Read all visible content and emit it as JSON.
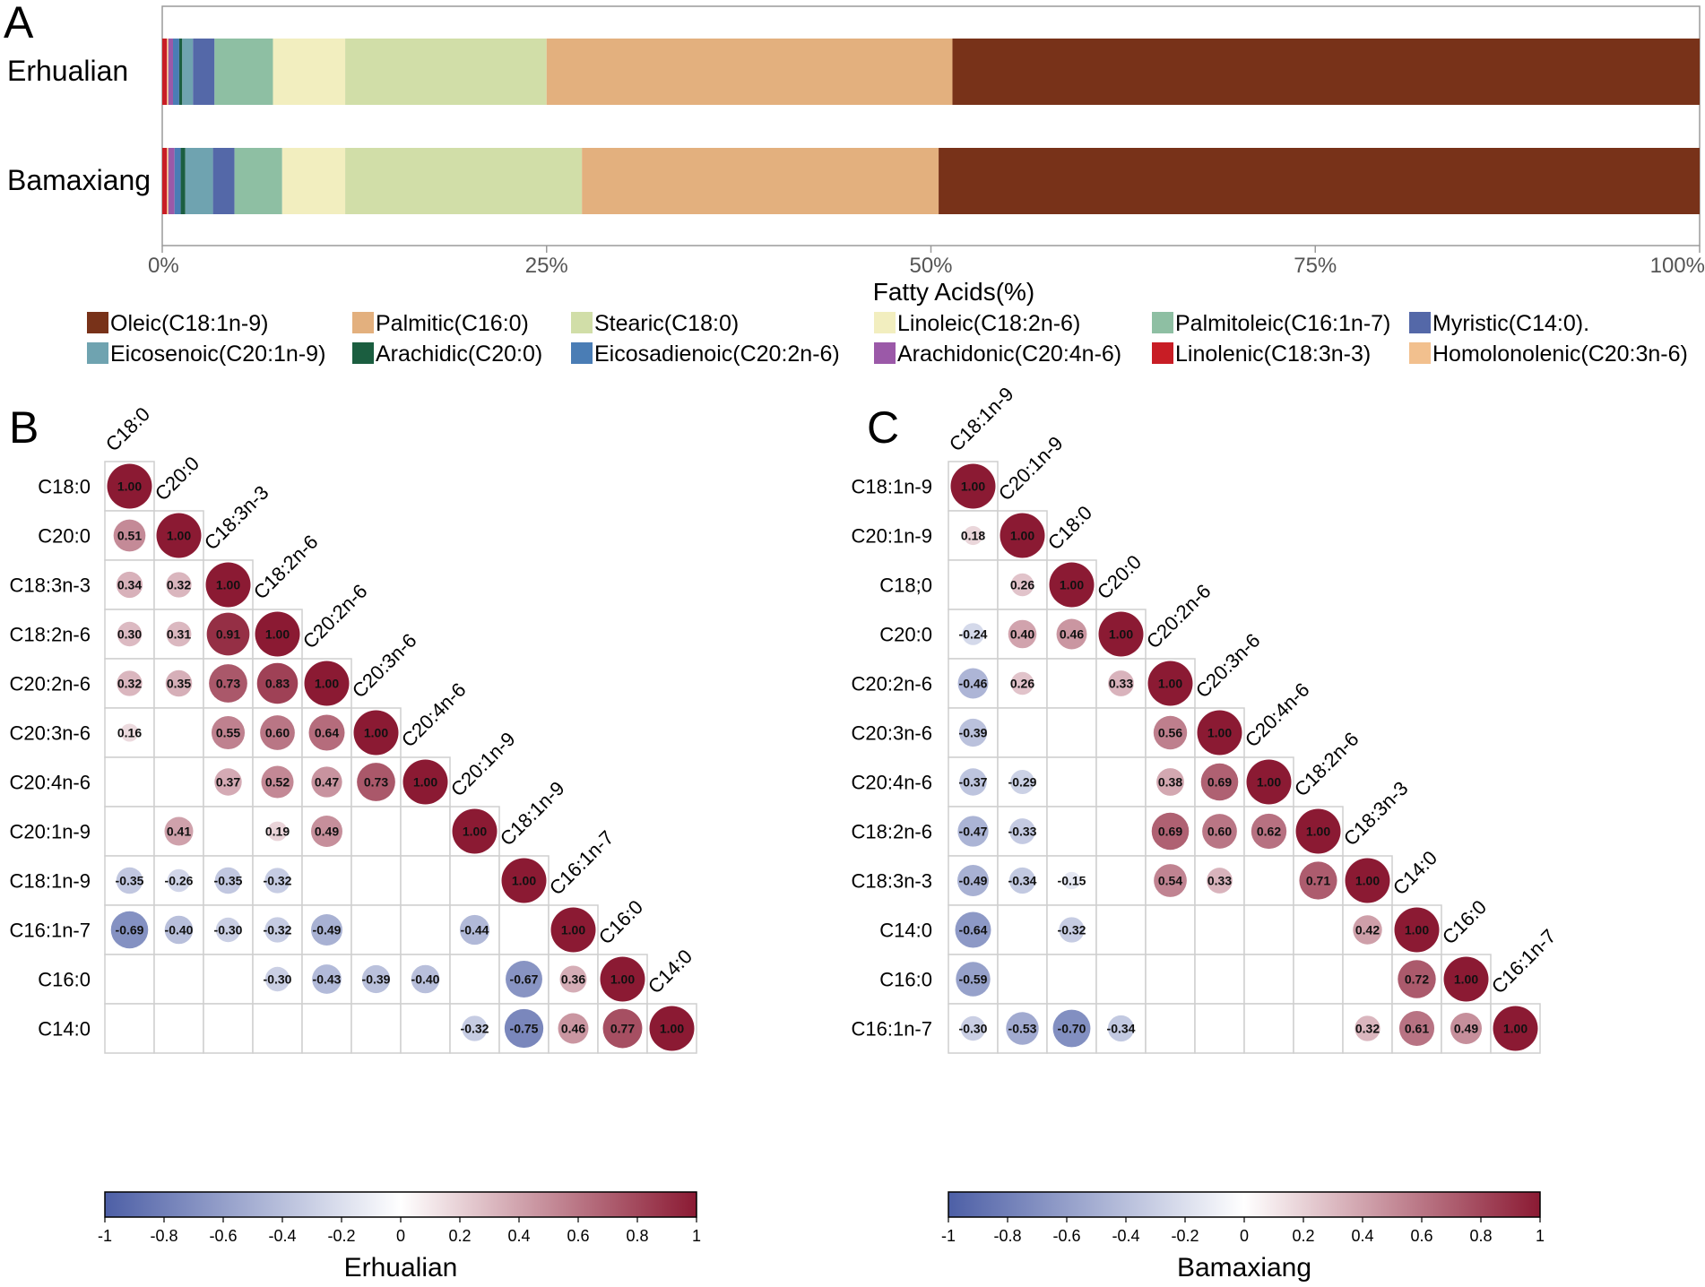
{
  "panel_labels": {
    "a": "A",
    "b": "B",
    "c": "C"
  },
  "chart_data": [
    {
      "type": "bar",
      "orientation": "horizontal-stacked",
      "xlabel": "Fatty  Acids(%)",
      "xlim": [
        0,
        100
      ],
      "tick_values": [
        0,
        25,
        50,
        75,
        100
      ],
      "tick_labels": [
        "0%",
        "25%",
        "50%",
        "75%",
        "100%"
      ],
      "categories": [
        "Erhualian",
        "Bamaxiang"
      ],
      "legend_position": "bottom",
      "series": [
        {
          "name": "Linolenic(C18:3n-3)",
          "color": "#c81d25",
          "values": [
            0.3,
            0.3
          ]
        },
        {
          "name": "Homolonolenic(C20:3n-6)",
          "color": "#f2c08e",
          "values": [
            0.1,
            0.1
          ]
        },
        {
          "name": "Arachidonic(C20:4n-6)",
          "color": "#9b59a8",
          "values": [
            0.3,
            0.4
          ]
        },
        {
          "name": "Eicosadienoic(C20:2n-6)",
          "color": "#4a7db5",
          "values": [
            0.4,
            0.4
          ]
        },
        {
          "name": "Arachidic(C20:0)",
          "color": "#1b5e40",
          "values": [
            0.2,
            0.3
          ]
        },
        {
          "name": "Eicosenoic(C20:1n-9)",
          "color": "#6fa3b0",
          "values": [
            0.7,
            1.8
          ]
        },
        {
          "name": "Myristic(C14:0).",
          "color": "#5468a8",
          "values": [
            1.4,
            1.4
          ]
        },
        {
          "name": "Palmitoleic(C16:1n-7)",
          "color": "#8ebfa3",
          "values": [
            3.8,
            3.1
          ]
        },
        {
          "name": "Linoleic(C18:2n-6)",
          "color": "#f2eebf",
          "values": [
            4.7,
            4.1
          ]
        },
        {
          "name": "Stearic(C18:0)",
          "color": "#d1dea8",
          "values": [
            13.1,
            15.4
          ]
        },
        {
          "name": "Palmitic(C16:0)",
          "color": "#e3b07e",
          "values": [
            26.4,
            23.2
          ]
        },
        {
          "name": "Oleic(C18:1n-9)",
          "color": "#783219",
          "values": [
            48.6,
            49.5
          ]
        }
      ],
      "legend_order": [
        "Oleic(C18:1n-9)",
        "Palmitic(C16:0)",
        "Stearic(C18:0)",
        "Linoleic(C18:2n-6)",
        "Palmitoleic(C16:1n-7)",
        "Myristic(C14:0).",
        "Eicosenoic(C20:1n-9)",
        "Arachidic(C20:0)",
        "Eicosadienoic(C20:2n-6)",
        "Arachidonic(C20:4n-6)",
        "Linolenic(C18:3n-3)",
        "Homolonolenic(C20:3n-6)"
      ]
    },
    {
      "type": "heatmap",
      "style": "lower-triangle correlation circles",
      "title": "Erhualian",
      "labels": [
        "C18:0",
        "C20:0",
        "C18:3n-3",
        "C18:2n-6",
        "C20:2n-6",
        "C20:3n-6",
        "C20:4n-6",
        "C20:1n-9",
        "C18:1n-9",
        "C16:1n-7",
        "C16:0",
        "C14:0"
      ],
      "cells": [
        {
          "r": 0,
          "c": 0,
          "v": 1.0,
          "t": "1.00"
        },
        {
          "r": 1,
          "c": 0,
          "v": 0.51,
          "t": "0.51"
        },
        {
          "r": 1,
          "c": 1,
          "v": 1.0,
          "t": "1.00"
        },
        {
          "r": 2,
          "c": 0,
          "v": 0.34,
          "t": "0.34"
        },
        {
          "r": 2,
          "c": 1,
          "v": 0.32,
          "t": "0.32"
        },
        {
          "r": 2,
          "c": 2,
          "v": 1.0,
          "t": "1.00"
        },
        {
          "r": 3,
          "c": 0,
          "v": 0.3,
          "t": "0.30"
        },
        {
          "r": 3,
          "c": 1,
          "v": 0.31,
          "t": "0.31"
        },
        {
          "r": 3,
          "c": 2,
          "v": 0.91,
          "t": "0.91"
        },
        {
          "r": 3,
          "c": 3,
          "v": 1.0,
          "t": "1.00"
        },
        {
          "r": 4,
          "c": 0,
          "v": 0.32,
          "t": "0.32"
        },
        {
          "r": 4,
          "c": 1,
          "v": 0.35,
          "t": "0.35"
        },
        {
          "r": 4,
          "c": 2,
          "v": 0.73,
          "t": "0.73"
        },
        {
          "r": 4,
          "c": 3,
          "v": 0.83,
          "t": "0.83"
        },
        {
          "r": 4,
          "c": 4,
          "v": 1.0,
          "t": "1.00"
        },
        {
          "r": 5,
          "c": 0,
          "v": 0.16,
          "t": "0.16"
        },
        {
          "r": 5,
          "c": 2,
          "v": 0.55,
          "t": "0.55"
        },
        {
          "r": 5,
          "c": 3,
          "v": 0.6,
          "t": "0.60"
        },
        {
          "r": 5,
          "c": 4,
          "v": 0.64,
          "t": "0.64"
        },
        {
          "r": 5,
          "c": 5,
          "v": 1.0,
          "t": "1.00"
        },
        {
          "r": 6,
          "c": 2,
          "v": 0.37,
          "t": "0.37"
        },
        {
          "r": 6,
          "c": 3,
          "v": 0.52,
          "t": "0.52"
        },
        {
          "r": 6,
          "c": 4,
          "v": 0.47,
          "t": "0.47"
        },
        {
          "r": 6,
          "c": 5,
          "v": 0.73,
          "t": "0.73"
        },
        {
          "r": 6,
          "c": 6,
          "v": 1.0,
          "t": "1.00"
        },
        {
          "r": 7,
          "c": 1,
          "v": 0.41,
          "t": "0.41"
        },
        {
          "r": 7,
          "c": 3,
          "v": 0.19,
          "t": "0.19"
        },
        {
          "r": 7,
          "c": 4,
          "v": 0.49,
          "t": "0.49"
        },
        {
          "r": 7,
          "c": 7,
          "v": 1.0,
          "t": "1.00"
        },
        {
          "r": 8,
          "c": 0,
          "v": -0.35,
          "t": "-0.35"
        },
        {
          "r": 8,
          "c": 1,
          "v": -0.26,
          "t": "-0.26"
        },
        {
          "r": 8,
          "c": 2,
          "v": -0.35,
          "t": "-0.35"
        },
        {
          "r": 8,
          "c": 3,
          "v": -0.32,
          "t": "-0.32"
        },
        {
          "r": 8,
          "c": 8,
          "v": 1.0,
          "t": "1.00"
        },
        {
          "r": 9,
          "c": 0,
          "v": -0.69,
          "t": "-0.69"
        },
        {
          "r": 9,
          "c": 1,
          "v": -0.4,
          "t": "-0.40"
        },
        {
          "r": 9,
          "c": 2,
          "v": -0.3,
          "t": "-0.30"
        },
        {
          "r": 9,
          "c": 3,
          "v": -0.32,
          "t": "-0.32"
        },
        {
          "r": 9,
          "c": 4,
          "v": -0.49,
          "t": "-0.49"
        },
        {
          "r": 9,
          "c": 7,
          "v": -0.44,
          "t": "-0.44"
        },
        {
          "r": 9,
          "c": 9,
          "v": 1.0,
          "t": "1.00"
        },
        {
          "r": 10,
          "c": 3,
          "v": -0.3,
          "t": "-0.30"
        },
        {
          "r": 10,
          "c": 4,
          "v": -0.43,
          "t": "-0.43"
        },
        {
          "r": 10,
          "c": 5,
          "v": -0.39,
          "t": "-0.39"
        },
        {
          "r": 10,
          "c": 6,
          "v": -0.4,
          "t": "-0.40"
        },
        {
          "r": 10,
          "c": 8,
          "v": -0.67,
          "t": "-0.67"
        },
        {
          "r": 10,
          "c": 9,
          "v": 0.36,
          "t": "0.36"
        },
        {
          "r": 10,
          "c": 10,
          "v": 1.0,
          "t": "1.00"
        },
        {
          "r": 11,
          "c": 7,
          "v": -0.32,
          "t": "-0.32"
        },
        {
          "r": 11,
          "c": 8,
          "v": -0.75,
          "t": "-0.75"
        },
        {
          "r": 11,
          "c": 9,
          "v": 0.46,
          "t": "0.46"
        },
        {
          "r": 11,
          "c": 10,
          "v": 0.77,
          "t": "0.77"
        },
        {
          "r": 11,
          "c": 11,
          "v": 1.0,
          "t": "1.00"
        }
      ],
      "colorbar": {
        "range": [
          -1,
          1
        ],
        "tick_labels": [
          "-1",
          "-0.8",
          "-0.6",
          "-0.4",
          "-0.2",
          "0",
          "0.2",
          "0.4",
          "0.6",
          "0.8",
          "1"
        ],
        "colors": [
          "#4d5fa6",
          "#ffffff",
          "#8b1a33"
        ]
      }
    },
    {
      "type": "heatmap",
      "style": "lower-triangle correlation circles",
      "title": "Bamaxiang",
      "labels": [
        "C18:1n-9",
        "C20:1n-9",
        "C18;0",
        "C20:0",
        "C20:2n-6",
        "C20:3n-6",
        "C20:4n-6",
        "C18:2n-6",
        "C18:3n-3",
        "C14:0",
        "C16:0",
        "C16:1n-7"
      ],
      "top_labels": [
        "C18:1n-9",
        "C20:1n-9",
        "C18:0",
        "C20:0",
        "C20:2n-6",
        "C20:3n-6",
        "C20:4n-6",
        "C18:2n-6",
        "C18:3n-3",
        "C14:0",
        "C16:0",
        "C16:1n-7"
      ],
      "cells": [
        {
          "r": 0,
          "c": 0,
          "v": 1.0,
          "t": "1.00"
        },
        {
          "r": 1,
          "c": 0,
          "v": 0.18,
          "t": "0.18"
        },
        {
          "r": 1,
          "c": 1,
          "v": 1.0,
          "t": "1.00"
        },
        {
          "r": 2,
          "c": 1,
          "v": 0.26,
          "t": "0.26"
        },
        {
          "r": 2,
          "c": 2,
          "v": 1.0,
          "t": "1.00"
        },
        {
          "r": 3,
          "c": 0,
          "v": -0.24,
          "t": "-0.24"
        },
        {
          "r": 3,
          "c": 1,
          "v": 0.4,
          "t": "0.40"
        },
        {
          "r": 3,
          "c": 2,
          "v": 0.46,
          "t": "0.46"
        },
        {
          "r": 3,
          "c": 3,
          "v": 1.0,
          "t": "1.00"
        },
        {
          "r": 4,
          "c": 0,
          "v": -0.46,
          "t": "-0.46"
        },
        {
          "r": 4,
          "c": 1,
          "v": 0.26,
          "t": "0.26"
        },
        {
          "r": 4,
          "c": 3,
          "v": 0.33,
          "t": "0.33"
        },
        {
          "r": 4,
          "c": 4,
          "v": 1.0,
          "t": "1.00"
        },
        {
          "r": 5,
          "c": 0,
          "v": -0.39,
          "t": "-0.39"
        },
        {
          "r": 5,
          "c": 4,
          "v": 0.56,
          "t": "0.56"
        },
        {
          "r": 5,
          "c": 5,
          "v": 1.0,
          "t": "1.00"
        },
        {
          "r": 6,
          "c": 0,
          "v": -0.37,
          "t": "-0.37"
        },
        {
          "r": 6,
          "c": 1,
          "v": -0.29,
          "t": "-0.29"
        },
        {
          "r": 6,
          "c": 4,
          "v": 0.38,
          "t": "0.38"
        },
        {
          "r": 6,
          "c": 5,
          "v": 0.69,
          "t": "0.69"
        },
        {
          "r": 6,
          "c": 6,
          "v": 1.0,
          "t": "1.00"
        },
        {
          "r": 7,
          "c": 0,
          "v": -0.47,
          "t": "-0.47"
        },
        {
          "r": 7,
          "c": 1,
          "v": -0.33,
          "t": "-0.33"
        },
        {
          "r": 7,
          "c": 4,
          "v": 0.69,
          "t": "0.69"
        },
        {
          "r": 7,
          "c": 5,
          "v": 0.6,
          "t": "0.60"
        },
        {
          "r": 7,
          "c": 6,
          "v": 0.62,
          "t": "0.62"
        },
        {
          "r": 7,
          "c": 7,
          "v": 1.0,
          "t": "1.00"
        },
        {
          "r": 8,
          "c": 0,
          "v": -0.49,
          "t": "-0.49"
        },
        {
          "r": 8,
          "c": 1,
          "v": -0.34,
          "t": "-0.34"
        },
        {
          "r": 8,
          "c": 2,
          "v": -0.15,
          "t": "-0.15"
        },
        {
          "r": 8,
          "c": 4,
          "v": 0.54,
          "t": "0.54"
        },
        {
          "r": 8,
          "c": 5,
          "v": 0.33,
          "t": "0.33"
        },
        {
          "r": 8,
          "c": 7,
          "v": 0.71,
          "t": "0.71"
        },
        {
          "r": 8,
          "c": 8,
          "v": 1.0,
          "t": "1.00"
        },
        {
          "r": 9,
          "c": 0,
          "v": -0.64,
          "t": "-0.64"
        },
        {
          "r": 9,
          "c": 2,
          "v": -0.32,
          "t": "-0.32"
        },
        {
          "r": 9,
          "c": 8,
          "v": 0.42,
          "t": "0.42"
        },
        {
          "r": 9,
          "c": 9,
          "v": 1.0,
          "t": "1.00"
        },
        {
          "r": 10,
          "c": 0,
          "v": -0.59,
          "t": "-0.59"
        },
        {
          "r": 10,
          "c": 9,
          "v": 0.72,
          "t": "0.72"
        },
        {
          "r": 10,
          "c": 10,
          "v": 1.0,
          "t": "1.00"
        },
        {
          "r": 11,
          "c": 0,
          "v": -0.3,
          "t": "-0.30"
        },
        {
          "r": 11,
          "c": 1,
          "v": -0.53,
          "t": "-0.53"
        },
        {
          "r": 11,
          "c": 2,
          "v": -0.7,
          "t": "-0.70"
        },
        {
          "r": 11,
          "c": 3,
          "v": -0.34,
          "t": "-0.34"
        },
        {
          "r": 11,
          "c": 8,
          "v": 0.32,
          "t": "0.32"
        },
        {
          "r": 11,
          "c": 9,
          "v": 0.61,
          "t": "0.61"
        },
        {
          "r": 11,
          "c": 10,
          "v": 0.49,
          "t": "0.49"
        },
        {
          "r": 11,
          "c": 11,
          "v": 1.0,
          "t": "1.00"
        }
      ],
      "colorbar": {
        "range": [
          -1,
          1
        ],
        "tick_labels": [
          "-1",
          "-0.8",
          "-0.6",
          "-0.4",
          "-0.2",
          "0",
          "0.2",
          "0.4",
          "0.6",
          "0.8",
          "1"
        ],
        "colors": [
          "#4d5fa6",
          "#ffffff",
          "#8b1a33"
        ]
      }
    }
  ]
}
